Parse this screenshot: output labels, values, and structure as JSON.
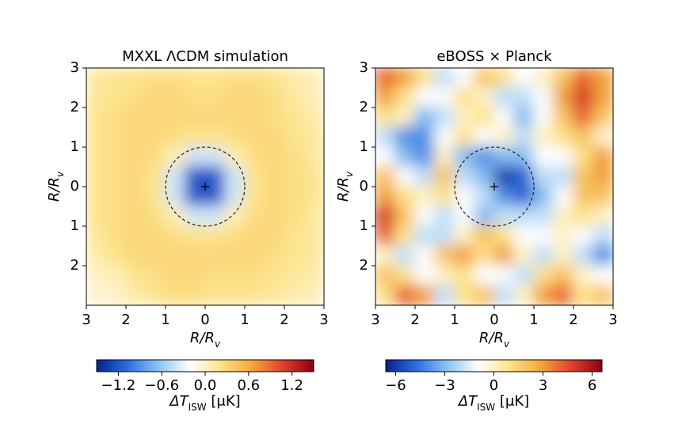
{
  "chart_data": [
    {
      "type": "heatmap",
      "title": "MXXL ΛCDM simulation",
      "xlabel": [
        "R/R",
        "v"
      ],
      "ylabel": [
        "R/R",
        "v"
      ],
      "x": [
        -2.75,
        -2.25,
        -1.75,
        -1.25,
        -0.75,
        -0.25,
        0.25,
        0.75,
        1.25,
        1.75,
        2.25,
        2.75
      ],
      "y": [
        2.75,
        2.25,
        1.75,
        1.25,
        0.75,
        0.25,
        -0.25,
        -0.75,
        -1.25,
        -1.75,
        -2.25,
        -2.75
      ],
      "z": [
        [
          0.15,
          0.2,
          0.2,
          0.25,
          0.25,
          0.2,
          0.2,
          0.25,
          0.25,
          0.2,
          0.1,
          0.05
        ],
        [
          0.15,
          0.2,
          0.25,
          0.3,
          0.3,
          0.25,
          0.25,
          0.3,
          0.3,
          0.25,
          0.15,
          0.05
        ],
        [
          0.2,
          0.25,
          0.3,
          0.3,
          0.3,
          0.3,
          0.3,
          0.3,
          0.3,
          0.25,
          0.2,
          0.1
        ],
        [
          0.2,
          0.25,
          0.3,
          0.3,
          0.25,
          0.2,
          0.2,
          0.25,
          0.3,
          0.3,
          0.2,
          0.15
        ],
        [
          0.2,
          0.25,
          0.3,
          0.25,
          0.05,
          -0.4,
          -0.4,
          0.05,
          0.25,
          0.3,
          0.25,
          0.15
        ],
        [
          0.2,
          0.25,
          0.3,
          0.2,
          -0.4,
          -1.2,
          -1.2,
          -0.4,
          0.2,
          0.3,
          0.25,
          0.2
        ],
        [
          0.2,
          0.25,
          0.3,
          0.2,
          -0.4,
          -1.2,
          -1.2,
          -0.4,
          0.2,
          0.3,
          0.25,
          0.2
        ],
        [
          0.2,
          0.25,
          0.3,
          0.25,
          0.05,
          -0.4,
          -0.4,
          0.05,
          0.25,
          0.3,
          0.25,
          0.15
        ],
        [
          0.15,
          0.25,
          0.3,
          0.3,
          0.25,
          0.2,
          0.2,
          0.25,
          0.3,
          0.3,
          0.2,
          0.15
        ],
        [
          0.1,
          0.2,
          0.3,
          0.3,
          0.3,
          0.3,
          0.3,
          0.3,
          0.3,
          0.25,
          0.2,
          0.15
        ],
        [
          0.0,
          0.05,
          0.2,
          0.25,
          0.3,
          0.3,
          0.25,
          0.25,
          0.25,
          0.2,
          0.15,
          0.1
        ],
        [
          -0.05,
          0.0,
          0.1,
          0.2,
          0.25,
          0.25,
          0.2,
          0.2,
          0.2,
          0.15,
          0.1,
          0.05
        ]
      ],
      "xlim": [
        -3,
        3
      ],
      "ylim": [
        -3,
        3
      ],
      "xticks": [
        {
          "value": -3,
          "label": "3"
        },
        {
          "value": -2,
          "label": "2"
        },
        {
          "value": -1,
          "label": "1"
        },
        0,
        1,
        2,
        3
      ],
      "yticks": [
        3,
        2,
        1,
        0,
        {
          "value": -1,
          "label": "1"
        },
        {
          "value": -2,
          "label": "2"
        }
      ],
      "colormap": [
        "#08208f",
        "#2b6fe0",
        "#8cc4f2",
        "#ffffff",
        "#fde38a",
        "#f4a93c",
        "#e0412a",
        "#8b0015"
      ],
      "colorbar": {
        "lim": [
          -1.5,
          1.5
        ],
        "label": [
          "ΔT",
          "ISW",
          " [μK]"
        ],
        "ticks": [
          {
            "value": -1.2,
            "label": "−1.2"
          },
          {
            "value": -0.6,
            "label": "−0.6"
          },
          {
            "value": 0,
            "label": "0.0"
          },
          0.6,
          1.2
        ]
      }
    },
    {
      "type": "heatmap",
      "title": "eBOSS × Planck",
      "xlabel": [
        "R/R",
        "v"
      ],
      "ylabel": [
        "R/R",
        "v"
      ],
      "x": [
        -2.75,
        -2.25,
        -1.75,
        -1.25,
        -0.75,
        -0.25,
        0.25,
        0.75,
        1.25,
        1.75,
        2.25,
        2.75
      ],
      "y": [
        2.75,
        2.25,
        1.75,
        1.25,
        0.75,
        0.25,
        -0.25,
        -0.75,
        -1.25,
        -1.75,
        -2.25,
        -2.75
      ],
      "z": [
        [
          4,
          3,
          1,
          -2,
          -1,
          2,
          1,
          -1,
          0,
          2,
          4,
          3
        ],
        [
          3,
          1,
          -1,
          -1,
          1,
          0,
          -2,
          -2,
          -1,
          3,
          5,
          3
        ],
        [
          1,
          0,
          -3,
          -2,
          0,
          1,
          -1,
          -3,
          -1,
          2,
          4,
          2
        ],
        [
          -2,
          -4,
          -4,
          -1,
          1,
          -1,
          0,
          -2,
          0,
          1,
          2,
          0
        ],
        [
          -1,
          -3,
          -4,
          0,
          -3,
          -4,
          -3,
          -3,
          -1,
          -1,
          1,
          3
        ],
        [
          2,
          -1,
          -2,
          2,
          -2,
          -3,
          -6,
          -5,
          -2,
          -2,
          2,
          3
        ],
        [
          3,
          1,
          0,
          1,
          -1,
          -2,
          -4,
          -5,
          -3,
          -1,
          2,
          2
        ],
        [
          5,
          2,
          -1,
          -2,
          -1,
          -3,
          -2,
          -2,
          -2,
          0,
          1,
          0
        ],
        [
          4,
          1,
          -2,
          -2,
          0,
          2,
          1,
          -1,
          -1,
          0,
          -1,
          -2
        ],
        [
          0,
          -2,
          -1,
          2,
          3,
          1,
          3,
          0,
          -2,
          0,
          -2,
          -4
        ],
        [
          2,
          1,
          -1,
          0,
          1,
          -1,
          -1,
          -2,
          1,
          2,
          0,
          -1
        ],
        [
          1,
          4,
          3,
          -2,
          1,
          2,
          -2,
          0,
          3,
          4,
          1,
          2
        ]
      ],
      "xlim": [
        -3,
        3
      ],
      "ylim": [
        -3,
        3
      ],
      "xticks": [
        {
          "value": -3,
          "label": "3"
        },
        {
          "value": -2,
          "label": "2"
        },
        {
          "value": -1,
          "label": "1"
        },
        0,
        1,
        2,
        3
      ],
      "yticks": [
        3,
        2,
        1,
        0,
        {
          "value": -1,
          "label": "1"
        },
        {
          "value": -2,
          "label": "2"
        }
      ],
      "colormap": [
        "#08208f",
        "#2b6fe0",
        "#8cc4f2",
        "#ffffff",
        "#fde38a",
        "#f4a93c",
        "#e0412a",
        "#8b0015"
      ],
      "colorbar": {
        "lim": [
          -6.6,
          6.6
        ],
        "label": [
          "ΔT",
          "ISW",
          " [μK]"
        ],
        "ticks": [
          {
            "value": -6,
            "label": "−6"
          },
          {
            "value": -3,
            "label": "−3"
          },
          0,
          3,
          6
        ]
      }
    }
  ]
}
